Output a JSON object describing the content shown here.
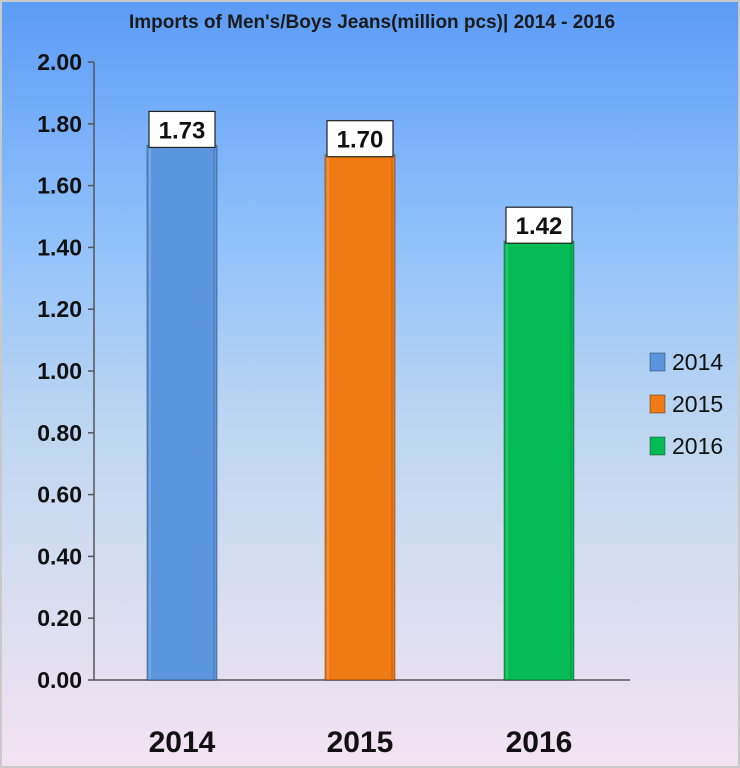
{
  "chart_data": {
    "type": "bar",
    "title": "Imports of Men's/Boys Jeans(million pcs)| 2014 - 2016",
    "xlabel": "",
    "ylabel": "",
    "categories": [
      "2014",
      "2015",
      "2016"
    ],
    "values": [
      1.73,
      1.7,
      1.42
    ],
    "data_labels": [
      "1.73",
      "1.70",
      "1.42"
    ],
    "colors": [
      "#5b95dd",
      "#f07a13",
      "#05bb55"
    ],
    "ylim": [
      0,
      2
    ],
    "ytick_labels": [
      "0.00",
      "0.20",
      "0.40",
      "0.60",
      "0.80",
      "1.00",
      "1.20",
      "1.40",
      "1.60",
      "1.80",
      "2.00"
    ],
    "legend": {
      "position": "right",
      "entries": [
        "2014",
        "2015",
        "2016"
      ]
    },
    "grid": false
  }
}
